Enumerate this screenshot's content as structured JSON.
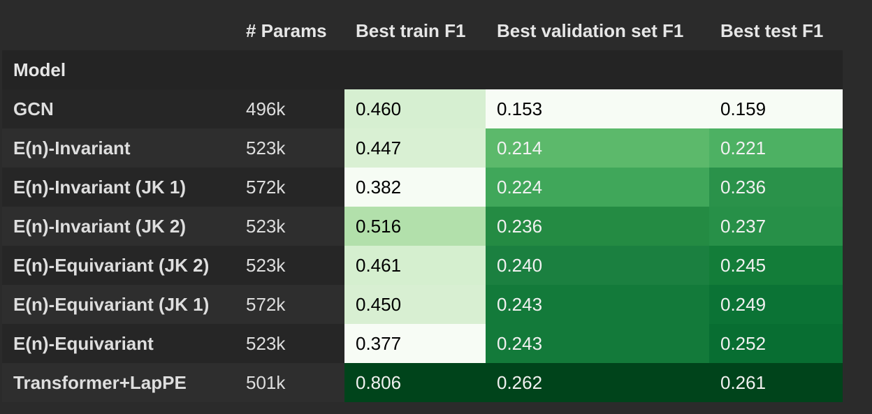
{
  "header": {
    "columns": [
      "",
      "# Params",
      "Best train F1",
      "Best validation set F1",
      "Best test F1"
    ],
    "index_label": "Model"
  },
  "rows": [
    {
      "model": "GCN",
      "params": "496k",
      "train": "0.460",
      "val": "0.153",
      "test": "0.159"
    },
    {
      "model": "E(n)-Invariant",
      "params": "523k",
      "train": "0.447",
      "val": "0.214",
      "test": "0.221"
    },
    {
      "model": "E(n)-Invariant (JK 1)",
      "params": "572k",
      "train": "0.382",
      "val": "0.224",
      "test": "0.236"
    },
    {
      "model": "E(n)-Invariant (JK 2)",
      "params": "523k",
      "train": "0.516",
      "val": "0.236",
      "test": "0.237"
    },
    {
      "model": "E(n)-Equivariant (JK 2)",
      "params": "523k",
      "train": "0.461",
      "val": "0.240",
      "test": "0.245"
    },
    {
      "model": "E(n)-Equivariant (JK 1)",
      "params": "572k",
      "train": "0.450",
      "val": "0.243",
      "test": "0.249"
    },
    {
      "model": "E(n)-Equivariant",
      "params": "523k",
      "train": "0.377",
      "val": "0.243",
      "test": "0.252"
    },
    {
      "model": "Transformer+LapPE",
      "params": "501k",
      "train": "0.806",
      "val": "0.262",
      "test": "0.261"
    }
  ],
  "cell_colors": {
    "train": [
      {
        "bg": "#d6efd1",
        "fg": "#000000"
      },
      {
        "bg": "#d9f0d3",
        "fg": "#000000"
      },
      {
        "bg": "#f6fcf4",
        "fg": "#000000"
      },
      {
        "bg": "#b2e0ab",
        "fg": "#000000"
      },
      {
        "bg": "#d5efcf",
        "fg": "#000000"
      },
      {
        "bg": "#d8efd2",
        "fg": "#000000"
      },
      {
        "bg": "#f7fcf5",
        "fg": "#000000"
      },
      {
        "bg": "#00441b",
        "fg": "#f1f1f1"
      }
    ],
    "val": [
      {
        "bg": "#f7fcf5",
        "fg": "#000000"
      },
      {
        "bg": "#5cb96b",
        "fg": "#f1f1f1"
      },
      {
        "bg": "#40a75a",
        "fg": "#f1f1f1"
      },
      {
        "bg": "#248b43",
        "fg": "#f1f1f1"
      },
      {
        "bg": "#1b8040",
        "fg": "#f1f1f1"
      },
      {
        "bg": "#137a3a",
        "fg": "#f1f1f1"
      },
      {
        "bg": "#137a3a",
        "fg": "#f1f1f1"
      },
      {
        "bg": "#00441b",
        "fg": "#f1f1f1"
      }
    ],
    "test": [
      {
        "bg": "#f7fcf5",
        "fg": "#000000"
      },
      {
        "bg": "#4db163",
        "fg": "#f1f1f1"
      },
      {
        "bg": "#2a924a",
        "fg": "#f1f1f1"
      },
      {
        "bg": "#279048",
        "fg": "#f1f1f1"
      },
      {
        "bg": "#137d39",
        "fg": "#f1f1f1"
      },
      {
        "bg": "#0b7335",
        "fg": "#f1f1f1"
      },
      {
        "bg": "#086e32",
        "fg": "#f1f1f1"
      },
      {
        "bg": "#00441b",
        "fg": "#f1f1f1"
      }
    ]
  }
}
